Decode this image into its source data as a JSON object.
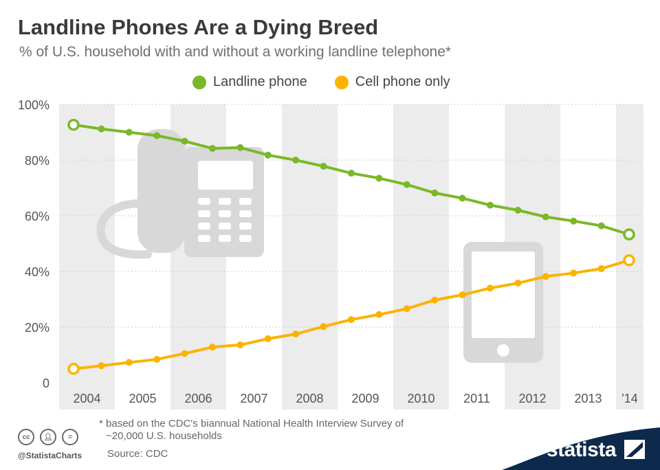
{
  "header": {
    "title": "Landline Phones Are a Dying Breed",
    "subtitle": "% of U.S. household with and without a working landline telephone*"
  },
  "colors": {
    "landline": "#7ab829",
    "cell": "#fbb300",
    "band": "#ececec",
    "grid": "#cccccc",
    "brand": "#0d2a4c"
  },
  "chart_data": {
    "type": "line",
    "title": "Landline Phones Are a Dying Breed",
    "subtitle": "% of U.S. household with and without a working landline telephone*",
    "ylim": [
      0,
      100
    ],
    "y_ticks": [
      "0",
      "20%",
      "40%",
      "60%",
      "80%",
      "100%"
    ],
    "x_labels": [
      "2004",
      "2005",
      "2006",
      "2007",
      "2008",
      "2009",
      "2010",
      "2011",
      "2012",
      "2013",
      "'14"
    ],
    "legend_position": "top-center",
    "grid": true,
    "x": [
      "2004 H1",
      "2004 H2",
      "2005 H1",
      "2005 H2",
      "2006 H1",
      "2006 H2",
      "2007 H1",
      "2007 H2",
      "2008 H1",
      "2008 H2",
      "2009 H1",
      "2009 H2",
      "2010 H1",
      "2010 H2",
      "2011 H1",
      "2011 H2",
      "2012 H1",
      "2012 H2",
      "2013 H1",
      "2013 H2",
      "2014 H1"
    ],
    "series": [
      {
        "name": "Landline phone",
        "color": "#7ab829",
        "values": [
          92.7,
          91.2,
          90.0,
          88.8,
          86.8,
          84.2,
          84.5,
          81.8,
          80.0,
          77.8,
          75.3,
          73.5,
          71.2,
          68.2,
          66.3,
          63.8,
          62.0,
          59.6,
          58.1,
          56.4,
          53.3
        ]
      },
      {
        "name": "Cell phone only",
        "color": "#fbb300",
        "values": [
          5.0,
          6.1,
          7.3,
          8.4,
          10.5,
          12.8,
          13.6,
          15.8,
          17.5,
          20.2,
          22.7,
          24.5,
          26.6,
          29.7,
          31.6,
          34.0,
          35.8,
          38.2,
          39.4,
          41.0,
          44.0
        ]
      }
    ]
  },
  "footer": {
    "note_line1": "* based on the CDC's biannual National Health Interview Survey of",
    "note_line2": "~20,000 U.S. households",
    "source": "Source: CDC",
    "handle": "@StatistaCharts",
    "brand": "statista"
  }
}
